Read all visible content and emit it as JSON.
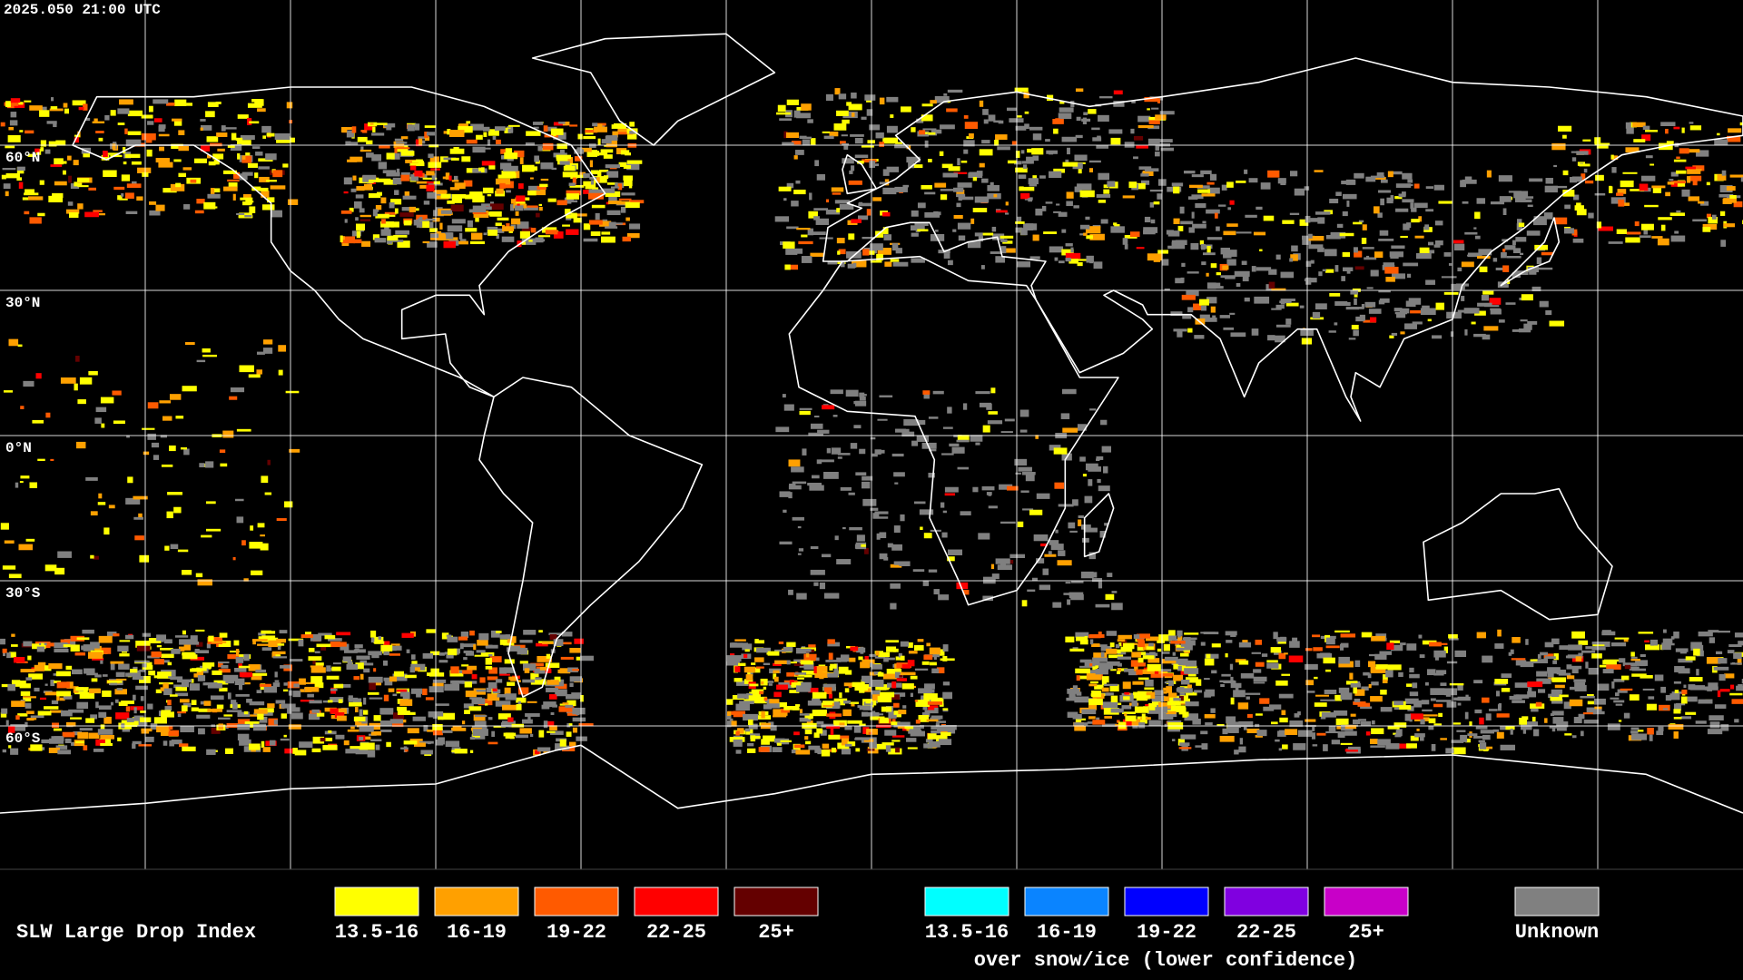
{
  "header": {
    "timestamp": "2025.050 21:00 UTC"
  },
  "grid_labels": [
    "60°N",
    "30°N",
    "0°N",
    "30°S",
    "60°S"
  ],
  "legend": {
    "title": "SLW Large Drop Index",
    "items": [
      {
        "label": "13.5-16",
        "color": "#ffff00"
      },
      {
        "label": "16-19",
        "color": "#ffa000"
      },
      {
        "label": "19-22",
        "color": "#ff5a00"
      },
      {
        "label": "22-25",
        "color": "#ff0000"
      },
      {
        "label": "25+",
        "color": "#640000"
      }
    ],
    "snow_items": [
      {
        "label": "13.5-16",
        "color": "#00ffff"
      },
      {
        "label": "16-19",
        "color": "#0a84ff"
      },
      {
        "label": "19-22",
        "color": "#0000ff"
      },
      {
        "label": "22-25",
        "color": "#8000e0"
      },
      {
        "label": "25+",
        "color": "#c800c8"
      }
    ],
    "snow_caption": "over snow/ice (lower confidence)",
    "unknown": {
      "label": "Unknown",
      "color": "#808080"
    }
  }
}
